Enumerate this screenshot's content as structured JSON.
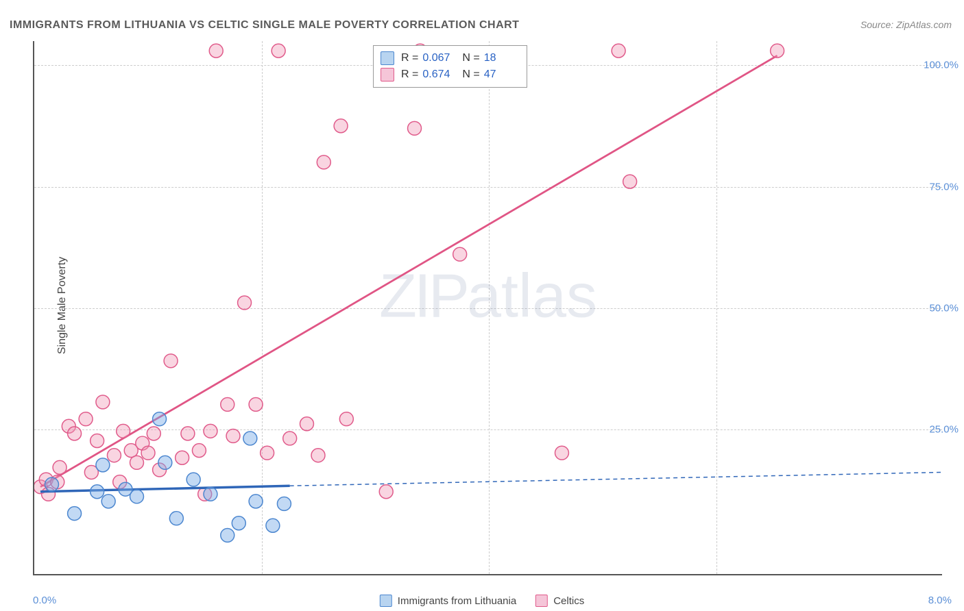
{
  "title": "IMMIGRANTS FROM LITHUANIA VS CELTIC SINGLE MALE POVERTY CORRELATION CHART",
  "source_label": "Source:",
  "source_name": "ZipAtlas.com",
  "watermark_zip": "ZIP",
  "watermark_atlas": "atlas",
  "y_axis_label": "Single Male Poverty",
  "chart": {
    "type": "scatter",
    "xlim": [
      0.0,
      8.0
    ],
    "ylim": [
      -5.0,
      105.0
    ],
    "x_ticks": [
      {
        "v": 0.0,
        "label": "0.0%"
      },
      {
        "v": 8.0,
        "label": "8.0%"
      }
    ],
    "y_ticks": [
      {
        "v": 25.0,
        "label": "25.0%"
      },
      {
        "v": 50.0,
        "label": "50.0%"
      },
      {
        "v": 75.0,
        "label": "75.0%"
      },
      {
        "v": 100.0,
        "label": "100.0%"
      }
    ],
    "x_grid": [
      2.0,
      4.0,
      6.0
    ],
    "grid_color": "#cccccc",
    "background_color": "#ffffff",
    "axis_color": "#555555",
    "marker_radius": 10,
    "marker_stroke_width": 1.5,
    "series": [
      {
        "name": "Immigrants from Lithuania",
        "key": "lithuania",
        "fill": "rgba(120,170,230,0.45)",
        "stroke": "#4b86cf",
        "legend_fill": "#b8d4f0",
        "legend_stroke": "#4b86cf",
        "R": "0.067",
        "N": "18",
        "regression": {
          "x1": 0.05,
          "y1": 12.0,
          "x2": 2.25,
          "y2": 13.2,
          "color": "#2f66b8",
          "width": 3.5,
          "dash": "none"
        },
        "regression_ext": {
          "x1": 2.25,
          "y1": 13.2,
          "x2": 8.0,
          "y2": 16.0,
          "color": "#2f66b8",
          "width": 1.5,
          "dash": "6,5"
        },
        "points": [
          [
            0.15,
            13.5
          ],
          [
            0.35,
            7.5
          ],
          [
            0.55,
            12.0
          ],
          [
            0.65,
            10.0
          ],
          [
            0.6,
            17.5
          ],
          [
            0.8,
            12.5
          ],
          [
            0.9,
            11.0
          ],
          [
            1.1,
            27.0
          ],
          [
            1.15,
            18.0
          ],
          [
            1.25,
            6.5
          ],
          [
            1.4,
            14.5
          ],
          [
            1.55,
            11.5
          ],
          [
            1.7,
            3.0
          ],
          [
            1.8,
            5.5
          ],
          [
            1.9,
            23.0
          ],
          [
            1.95,
            10.0
          ],
          [
            2.1,
            5.0
          ],
          [
            2.2,
            9.5
          ]
        ]
      },
      {
        "name": "Celtics",
        "key": "celtics",
        "fill": "rgba(240,150,180,0.40)",
        "stroke": "#e05a8a",
        "legend_fill": "#f5c5d8",
        "legend_stroke": "#e05a8a",
        "R": "0.674",
        "N": "47",
        "regression": {
          "x1": 0.05,
          "y1": 13.0,
          "x2": 6.55,
          "y2": 102.0,
          "color": "#e05585",
          "width": 2.8,
          "dash": "none"
        },
        "points": [
          [
            0.05,
            13.0
          ],
          [
            0.1,
            14.5
          ],
          [
            0.12,
            11.5
          ],
          [
            0.2,
            14.0
          ],
          [
            0.22,
            17.0
          ],
          [
            0.3,
            25.5
          ],
          [
            0.35,
            24.0
          ],
          [
            0.45,
            27.0
          ],
          [
            0.5,
            16.0
          ],
          [
            0.55,
            22.5
          ],
          [
            0.6,
            30.5
          ],
          [
            0.7,
            19.5
          ],
          [
            0.75,
            14.0
          ],
          [
            0.78,
            24.5
          ],
          [
            0.85,
            20.5
          ],
          [
            0.9,
            18.0
          ],
          [
            0.95,
            22.0
          ],
          [
            1.0,
            20.0
          ],
          [
            1.05,
            24.0
          ],
          [
            1.1,
            16.5
          ],
          [
            1.2,
            39.0
          ],
          [
            1.3,
            19.0
          ],
          [
            1.35,
            24.0
          ],
          [
            1.45,
            20.5
          ],
          [
            1.5,
            11.5
          ],
          [
            1.55,
            24.5
          ],
          [
            1.6,
            103.0
          ],
          [
            1.7,
            30.0
          ],
          [
            1.75,
            23.5
          ],
          [
            1.85,
            51.0
          ],
          [
            1.95,
            30.0
          ],
          [
            2.05,
            20.0
          ],
          [
            2.15,
            103.0
          ],
          [
            2.25,
            23.0
          ],
          [
            2.4,
            26.0
          ],
          [
            2.5,
            19.5
          ],
          [
            2.55,
            80.0
          ],
          [
            2.7,
            87.5
          ],
          [
            2.75,
            27.0
          ],
          [
            3.1,
            12.0
          ],
          [
            3.35,
            87.0
          ],
          [
            3.4,
            103.0
          ],
          [
            3.75,
            61.0
          ],
          [
            4.65,
            20.0
          ],
          [
            5.15,
            103.0
          ],
          [
            5.25,
            76.0
          ],
          [
            6.55,
            103.0
          ]
        ]
      }
    ]
  }
}
